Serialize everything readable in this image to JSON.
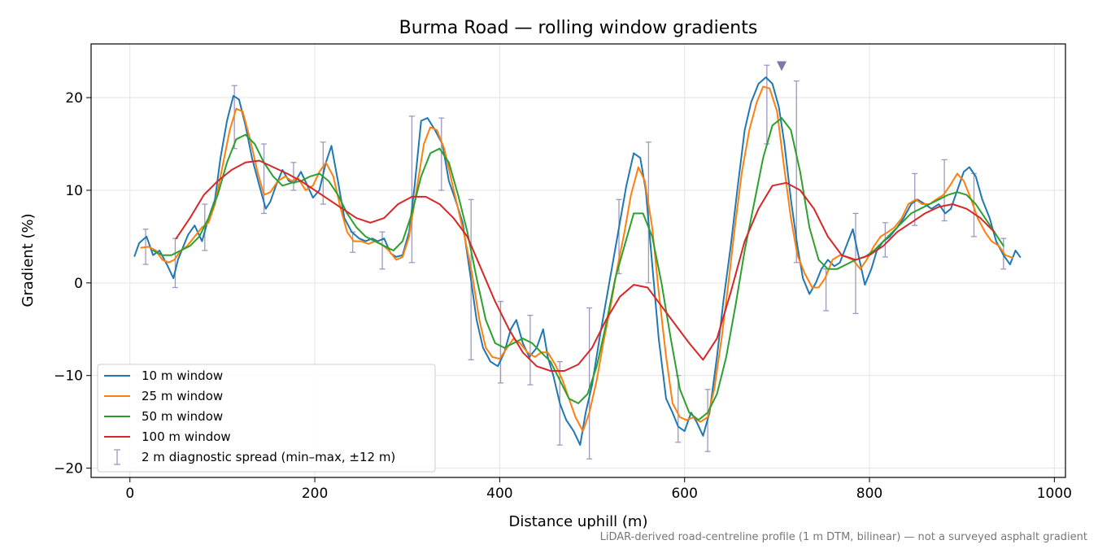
{
  "chart_data": {
    "type": "line",
    "title": "Burma Road — rolling window gradients",
    "xlabel": "Distance uphill (m)",
    "ylabel": "Gradient (%)",
    "footnote": "LiDAR-derived road-centreline profile (1 m DTM, bilinear) — not a surveyed asphalt gradient",
    "xlim": [
      -42,
      1012
    ],
    "ylim": [
      -21,
      25.8
    ],
    "xticks": [
      0,
      200,
      400,
      600,
      800,
      1000
    ],
    "xtick_labels": [
      "0",
      "200",
      "400",
      "600",
      "800",
      "1000"
    ],
    "yticks": [
      -20,
      -10,
      0,
      10,
      20
    ],
    "ytick_labels": [
      "−20",
      "−10",
      "0",
      "10",
      "20"
    ],
    "grid": true,
    "legend_position": "lower-left",
    "series": [
      {
        "name": "10 m window",
        "color": "#1f77b4",
        "x": [
          5,
          10,
          18,
          25,
          32,
          40,
          47,
          52,
          58,
          63,
          70,
          78,
          85,
          92,
          98,
          105,
          112,
          118,
          125,
          132,
          140,
          147,
          152,
          158,
          165,
          172,
          178,
          185,
          192,
          198,
          205,
          212,
          218,
          225,
          232,
          240,
          248,
          255,
          262,
          268,
          275,
          282,
          288,
          295,
          302,
          308,
          315,
          322,
          330,
          338,
          345,
          352,
          360,
          368,
          375,
          382,
          390,
          398,
          405,
          412,
          418,
          425,
          432,
          440,
          447,
          452,
          458,
          465,
          472,
          480,
          487,
          493,
          500,
          508,
          515,
          522,
          530,
          537,
          545,
          552,
          558,
          565,
          572,
          580,
          587,
          593,
          600,
          607,
          613,
          620,
          627,
          635,
          642,
          650,
          657,
          665,
          672,
          680,
          688,
          695,
          702,
          708,
          715,
          722,
          728,
          735,
          742,
          748,
          755,
          762,
          768,
          775,
          782,
          788,
          795,
          802,
          808,
          815,
          822,
          830,
          837,
          845,
          852,
          860,
          867,
          875,
          882,
          888,
          895,
          902,
          908,
          915,
          922,
          930,
          937,
          945,
          952,
          958,
          963
        ],
        "y": [
          2.9,
          4.3,
          5.0,
          3.0,
          3.5,
          2.0,
          0.5,
          2.5,
          4.0,
          5.2,
          6.2,
          4.5,
          7.0,
          9.0,
          13.5,
          17.5,
          20.2,
          19.8,
          17.0,
          13.5,
          10.5,
          8.0,
          8.8,
          10.5,
          12.2,
          11.0,
          10.8,
          12.0,
          10.5,
          9.2,
          10.0,
          13.0,
          14.8,
          11.0,
          7.0,
          5.5,
          4.8,
          4.5,
          4.8,
          4.5,
          4.8,
          3.2,
          2.8,
          3.0,
          5.5,
          10.5,
          17.5,
          17.8,
          16.5,
          15.0,
          11.0,
          9.0,
          6.5,
          1.0,
          -4.0,
          -7.0,
          -8.5,
          -9.0,
          -7.5,
          -5.0,
          -4.0,
          -6.5,
          -8.0,
          -7.0,
          -5.0,
          -8.0,
          -10.0,
          -13.0,
          -14.8,
          -16.0,
          -17.5,
          -14.0,
          -11.0,
          -6.0,
          -2.0,
          2.0,
          6.5,
          10.5,
          14.0,
          13.5,
          10.0,
          2.0,
          -6.0,
          -12.5,
          -14.0,
          -15.5,
          -16.0,
          -14.0,
          -15.0,
          -16.5,
          -14.0,
          -8.0,
          -2.0,
          4.0,
          10.0,
          16.5,
          19.5,
          21.5,
          22.2,
          21.5,
          19.0,
          15.0,
          9.0,
          4.0,
          0.5,
          -1.2,
          0.0,
          1.5,
          2.5,
          1.8,
          2.2,
          4.0,
          5.8,
          3.0,
          -0.2,
          1.5,
          3.5,
          4.5,
          5.0,
          6.0,
          7.0,
          8.5,
          9.0,
          8.5,
          8.0,
          8.5,
          7.5,
          8.0,
          10.0,
          12.0,
          12.5,
          11.5,
          9.0,
          7.0,
          4.5,
          3.0,
          2.0,
          3.5,
          2.8
        ]
      },
      {
        "name": "25 m window",
        "color": "#ff7f0e",
        "x": [
          12,
          20,
          28,
          35,
          42,
          48,
          55,
          62,
          70,
          78,
          85,
          92,
          100,
          108,
          115,
          122,
          130,
          138,
          145,
          152,
          160,
          168,
          175,
          182,
          190,
          198,
          205,
          212,
          220,
          228,
          235,
          242,
          250,
          258,
          265,
          272,
          280,
          288,
          295,
          302,
          310,
          318,
          325,
          332,
          340,
          348,
          355,
          362,
          370,
          378,
          385,
          392,
          400,
          408,
          415,
          422,
          430,
          438,
          445,
          452,
          460,
          468,
          475,
          482,
          490,
          497,
          505,
          512,
          520,
          527,
          535,
          542,
          550,
          557,
          565,
          572,
          580,
          587,
          595,
          602,
          610,
          617,
          625,
          632,
          640,
          648,
          655,
          662,
          670,
          678,
          685,
          692,
          700,
          707,
          715,
          722,
          730,
          738,
          745,
          752,
          760,
          768,
          775,
          782,
          790,
          797,
          805,
          812,
          820,
          827,
          835,
          842,
          850,
          857,
          865,
          872,
          880,
          887,
          895,
          902,
          910,
          917,
          925,
          932,
          940,
          947,
          955
        ],
        "y": [
          3.8,
          3.9,
          3.5,
          2.5,
          2.2,
          2.5,
          3.5,
          4.0,
          5.0,
          6.0,
          6.5,
          8.5,
          12.5,
          16.5,
          18.8,
          18.5,
          15.5,
          12.0,
          9.5,
          9.8,
          11.0,
          11.5,
          11.0,
          11.3,
          10.0,
          10.5,
          12.0,
          13.0,
          11.5,
          8.0,
          5.5,
          4.5,
          4.5,
          4.2,
          4.5,
          4.2,
          3.5,
          2.5,
          2.8,
          5.0,
          10.0,
          15.0,
          16.8,
          16.5,
          14.5,
          11.0,
          8.0,
          5.0,
          1.0,
          -4.0,
          -7.0,
          -8.0,
          -8.2,
          -7.0,
          -6.0,
          -6.5,
          -7.5,
          -8.0,
          -7.5,
          -7.5,
          -8.8,
          -10.5,
          -12.5,
          -14.5,
          -16.0,
          -14.0,
          -10.5,
          -6.5,
          -2.5,
          1.5,
          5.5,
          9.5,
          12.5,
          11.0,
          6.0,
          -1.0,
          -8.0,
          -13.0,
          -14.5,
          -14.8,
          -14.5,
          -15.0,
          -14.5,
          -11.5,
          -6.0,
          0.5,
          6.5,
          12.0,
          16.5,
          19.5,
          21.2,
          21.0,
          18.5,
          13.0,
          7.0,
          3.0,
          1.0,
          -0.5,
          -0.5,
          0.5,
          2.5,
          3.0,
          2.8,
          2.5,
          1.5,
          2.5,
          4.0,
          5.0,
          5.5,
          6.0,
          7.0,
          8.5,
          9.0,
          8.5,
          8.5,
          9.0,
          9.5,
          10.5,
          11.8,
          11.0,
          9.0,
          7.0,
          5.5,
          4.5,
          4.0,
          3.0,
          2.7
        ]
      },
      {
        "name": "50 m window",
        "color": "#2ca02c",
        "x": [
          25,
          35,
          45,
          55,
          65,
          75,
          85,
          95,
          105,
          115,
          125,
          135,
          145,
          155,
          165,
          175,
          185,
          195,
          205,
          215,
          225,
          235,
          245,
          255,
          265,
          275,
          285,
          295,
          305,
          315,
          325,
          335,
          345,
          355,
          365,
          375,
          385,
          395,
          405,
          415,
          425,
          435,
          445,
          455,
          465,
          475,
          485,
          495,
          505,
          515,
          525,
          535,
          545,
          555,
          565,
          575,
          585,
          595,
          605,
          615,
          625,
          635,
          645,
          655,
          665,
          675,
          685,
          695,
          705,
          715,
          725,
          735,
          745,
          755,
          765,
          775,
          785,
          795,
          805,
          815,
          825,
          835,
          845,
          855,
          865,
          875,
          885,
          895,
          905,
          915,
          925,
          935,
          945
        ],
        "y": [
          3.5,
          3.0,
          3.0,
          3.5,
          4.0,
          5.0,
          7.0,
          9.5,
          13.0,
          15.5,
          16.0,
          15.0,
          13.0,
          11.5,
          10.5,
          10.8,
          11.0,
          11.5,
          11.8,
          11.0,
          9.5,
          7.5,
          6.0,
          5.0,
          4.5,
          4.0,
          3.5,
          4.5,
          7.5,
          11.5,
          14.0,
          14.5,
          13.0,
          9.5,
          5.5,
          0.5,
          -4.0,
          -6.5,
          -7.0,
          -6.5,
          -6.0,
          -6.5,
          -7.5,
          -8.5,
          -10.5,
          -12.5,
          -13.0,
          -12.0,
          -9.0,
          -4.5,
          0.5,
          4.0,
          7.5,
          7.5,
          5.0,
          0.0,
          -6.0,
          -11.5,
          -14.0,
          -14.8,
          -14.0,
          -12.0,
          -8.0,
          -2.5,
          3.5,
          8.5,
          13.5,
          17.0,
          17.8,
          16.5,
          12.0,
          6.0,
          2.5,
          1.5,
          1.5,
          2.0,
          2.5,
          2.8,
          3.5,
          4.5,
          5.5,
          6.5,
          7.5,
          8.0,
          8.5,
          9.0,
          9.5,
          9.8,
          9.5,
          8.5,
          7.0,
          5.5,
          4.0
        ]
      },
      {
        "name": "100 m window",
        "color": "#d62728",
        "x": [
          50,
          65,
          80,
          95,
          110,
          125,
          140,
          155,
          170,
          185,
          200,
          215,
          230,
          245,
          260,
          275,
          290,
          305,
          320,
          335,
          350,
          365,
          380,
          395,
          410,
          425,
          440,
          455,
          470,
          485,
          500,
          515,
          530,
          545,
          560,
          575,
          590,
          605,
          620,
          635,
          650,
          665,
          680,
          695,
          710,
          725,
          740,
          755,
          770,
          785,
          800,
          815,
          830,
          845,
          860,
          875,
          890,
          905,
          920,
          935
        ],
        "y": [
          4.8,
          7.0,
          9.5,
          11.0,
          12.2,
          13.0,
          13.2,
          12.5,
          11.8,
          11.0,
          10.0,
          9.0,
          8.0,
          7.0,
          6.5,
          7.0,
          8.5,
          9.3,
          9.3,
          8.5,
          7.0,
          5.0,
          1.5,
          -2.0,
          -5.0,
          -7.5,
          -9.0,
          -9.5,
          -9.5,
          -8.8,
          -7.0,
          -4.0,
          -1.5,
          -0.2,
          -0.5,
          -2.5,
          -4.5,
          -6.5,
          -8.3,
          -6.0,
          -1.0,
          4.5,
          8.0,
          10.5,
          10.8,
          10.0,
          8.0,
          5.0,
          3.0,
          2.5,
          3.0,
          4.0,
          5.5,
          6.5,
          7.5,
          8.2,
          8.5,
          8.0,
          7.0,
          5.5
        ]
      }
    ],
    "error_bars": {
      "name": "2 m diagnostic spread (min–max, ±12 m)",
      "color": "#9e98c0",
      "points": [
        {
          "x": 17,
          "low": 2.0,
          "high": 5.8
        },
        {
          "x": 49,
          "low": -0.5,
          "high": 4.8
        },
        {
          "x": 81,
          "low": 3.5,
          "high": 8.5
        },
        {
          "x": 113,
          "low": 14.5,
          "high": 21.3
        },
        {
          "x": 145,
          "low": 7.5,
          "high": 15.0
        },
        {
          "x": 177,
          "low": 10.0,
          "high": 13.0
        },
        {
          "x": 209,
          "low": 8.5,
          "high": 15.2
        },
        {
          "x": 241,
          "low": 3.3,
          "high": 5.5
        },
        {
          "x": 273,
          "low": 1.5,
          "high": 5.5
        },
        {
          "x": 305,
          "low": 2.2,
          "high": 18.0
        },
        {
          "x": 337,
          "low": 10.0,
          "high": 17.8
        },
        {
          "x": 369,
          "low": -8.3,
          "high": 9.0
        },
        {
          "x": 401,
          "low": -10.8,
          "high": -2.0
        },
        {
          "x": 433,
          "low": -11.0,
          "high": -3.5
        },
        {
          "x": 465,
          "low": -17.5,
          "high": -8.5
        },
        {
          "x": 497,
          "low": -19.0,
          "high": -2.7
        },
        {
          "x": 529,
          "low": 1.0,
          "high": 9.0
        },
        {
          "x": 561,
          "low": 0.0,
          "high": 15.2
        },
        {
          "x": 593,
          "low": -17.2,
          "high": -10.0
        },
        {
          "x": 625,
          "low": -18.2,
          "high": -11.5
        },
        {
          "x": 689,
          "low": 15.0,
          "high": 23.5
        },
        {
          "x": 721,
          "low": 2.2,
          "high": 21.8
        },
        {
          "x": 753,
          "low": -3.0,
          "high": 1.5
        },
        {
          "x": 785,
          "low": -3.3,
          "high": 7.5
        },
        {
          "x": 817,
          "low": 2.8,
          "high": 6.5
        },
        {
          "x": 849,
          "low": 6.2,
          "high": 11.8
        },
        {
          "x": 881,
          "low": 6.7,
          "high": 13.3
        },
        {
          "x": 913,
          "low": 5.0,
          "high": 11.8
        },
        {
          "x": 945,
          "low": 1.5,
          "high": 4.8
        }
      ]
    },
    "peak_marker": {
      "x": 705,
      "y": 23.4,
      "color": "#8077a8"
    }
  }
}
